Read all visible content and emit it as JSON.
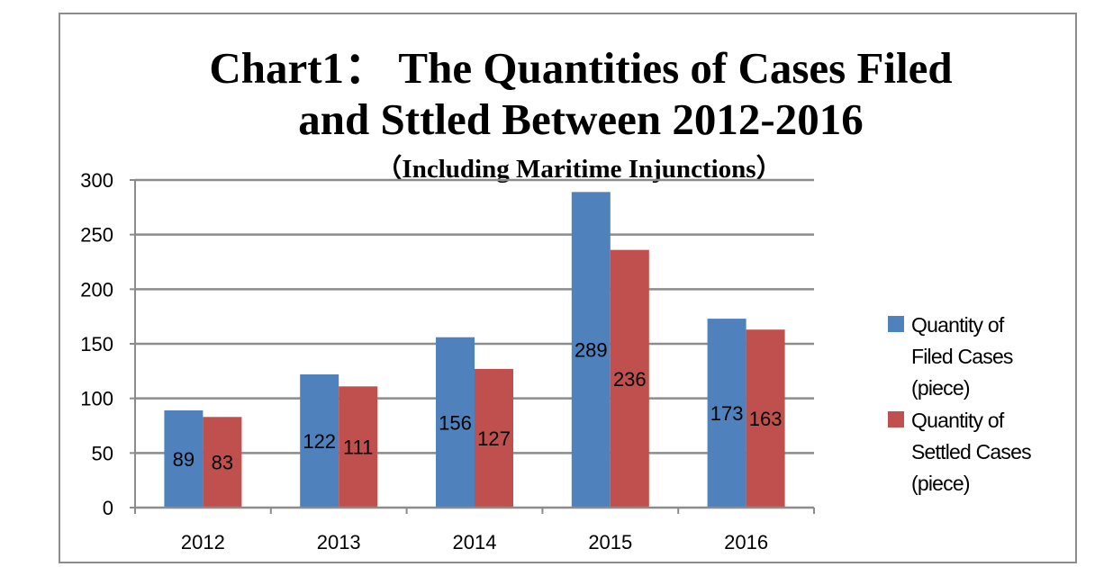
{
  "title": {
    "line1": "Chart1：  The Quantities of Cases Filed",
    "line2": "and Sttled Between 2012-2016",
    "subtitle": "（Including Maritime Injunctions）"
  },
  "colors": {
    "filed": "#4f81bd",
    "settled": "#c0504d",
    "gridline": "#8c8c8c",
    "axis": "#8c8c8c"
  },
  "legend": [
    {
      "lines": [
        "Quantity of",
        "Filed Cases",
        "(piece)"
      ]
    },
    {
      "lines": [
        "Quantity of",
        "Settled Cases",
        "(piece)"
      ]
    }
  ],
  "chart_data": {
    "type": "bar",
    "title": "Chart1：  The Quantities of Cases Filed and Sttled Between 2012-2016",
    "subtitle": "（Including Maritime Injunctions）",
    "categories": [
      "2012",
      "2013",
      "2014",
      "2015",
      "2016"
    ],
    "series": [
      {
        "name": "Quantity of Filed Cases (piece)",
        "values": [
          89,
          122,
          156,
          289,
          173
        ]
      },
      {
        "name": "Quantity of Settled Cases (piece)",
        "values": [
          83,
          111,
          127,
          236,
          163
        ]
      }
    ],
    "ylim": [
      0,
      300
    ],
    "yticks": [
      "0",
      "50",
      "100",
      "150",
      "200",
      "250",
      "300"
    ],
    "grid": true,
    "legend_position": "right"
  }
}
